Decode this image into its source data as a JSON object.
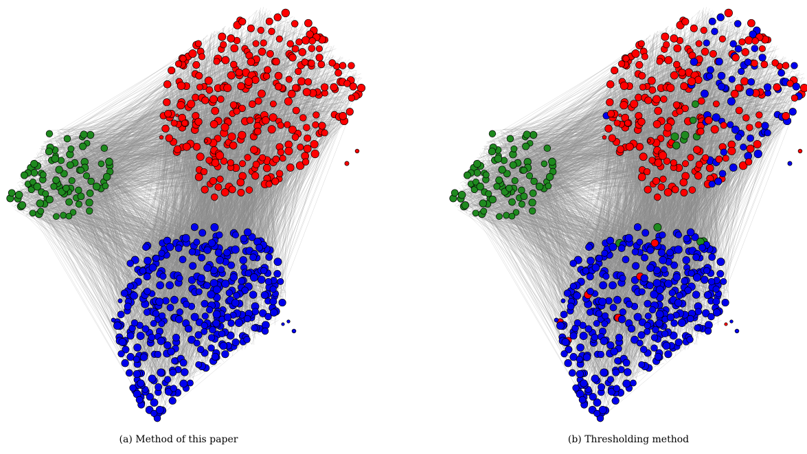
{
  "figure": {
    "panels": [
      {
        "caption": "(a) Method of this paper"
      },
      {
        "caption": "(b) Thresholding method"
      }
    ]
  },
  "colors": {
    "red": "#ff0000",
    "green": "#1f8a1f",
    "blue": "#0000ee",
    "edge": "#8c8c8c",
    "node_stroke": "#000000"
  },
  "node_counts": {
    "red_community": 300,
    "green_community": 90,
    "blue_community": 380
  }
}
